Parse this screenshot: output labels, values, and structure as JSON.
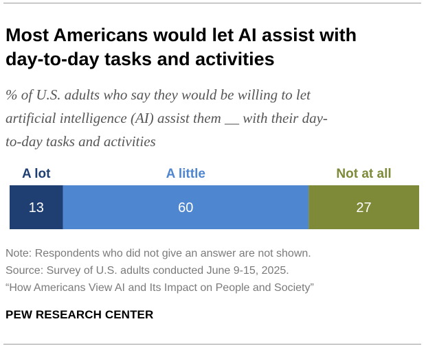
{
  "title_lines": [
    "Most Americans would let AI assist with",
    "day-to-day tasks and activities"
  ],
  "subtitle_lines": [
    "% of U.S. adults who say they would be willing to let",
    "artificial intelligence (AI) assist them __ with their day-",
    "to-day tasks and activities"
  ],
  "chart_data": {
    "type": "bar",
    "orientation": "horizontal-stacked",
    "categories": [
      "A lot",
      "A little",
      "Not at all"
    ],
    "values": [
      13,
      60,
      27
    ],
    "colors": [
      "#1f3f73",
      "#4f86d0",
      "#7f8a38"
    ],
    "label_colors": [
      "#1f3f73",
      "#4f86d0",
      "#7f8a38"
    ],
    "value_label_color": "#ffffff"
  },
  "notes": [
    "Note: Respondents who did not give an answer are not shown.",
    "Source: Survey of U.S. adults conducted June 9-15, 2025.",
    "“How Americans View AI and Its Impact on People and Society”"
  ],
  "brand": "PEW RESEARCH CENTER"
}
